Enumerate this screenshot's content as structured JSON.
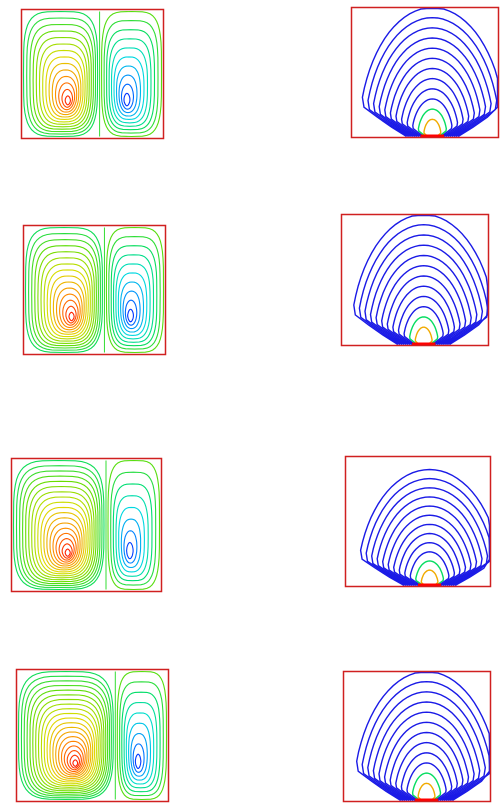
{
  "figure": {
    "panels": [
      {
        "id": "row1-streamlines",
        "kind": "streamlines",
        "left_cell_strength": 1.0,
        "right_cell_strength": 1.0,
        "divider_shift": 0.0
      },
      {
        "id": "row1-isotherms",
        "kind": "isotherms",
        "plume_strength": 1.0,
        "plume_tilt": 0.0
      },
      {
        "id": "row2-streamlines",
        "kind": "streamlines",
        "left_cell_strength": 1.05,
        "right_cell_strength": 0.95,
        "divider_shift": 0.02
      },
      {
        "id": "row2-isotherms",
        "kind": "isotherms",
        "plume_strength": 1.0,
        "plume_tilt": 0.03
      },
      {
        "id": "row3-streamlines",
        "kind": "streamlines",
        "left_cell_strength": 1.25,
        "right_cell_strength": 0.75,
        "divider_shift": 0.08
      },
      {
        "id": "row3-isotherms",
        "kind": "isotherms",
        "plume_strength": 0.9,
        "plume_tilt": 0.1
      },
      {
        "id": "row4-streamlines",
        "kind": "streamlines",
        "left_cell_strength": 1.4,
        "right_cell_strength": 0.9,
        "divider_shift": 0.1
      },
      {
        "id": "row4-isotherms",
        "kind": "isotherms",
        "plume_strength": 1.0,
        "plume_tilt": 0.05
      }
    ],
    "colors": {
      "frame": "#d02020",
      "isotherm": "#1a1ae6",
      "hot": "#ff0000",
      "background": "#ffffff"
    },
    "colormap": [
      "#0000ff",
      "#0088ff",
      "#00dddd",
      "#00dd66",
      "#66dd00",
      "#dddd00",
      "#ff8800",
      "#ff0000"
    ]
  }
}
